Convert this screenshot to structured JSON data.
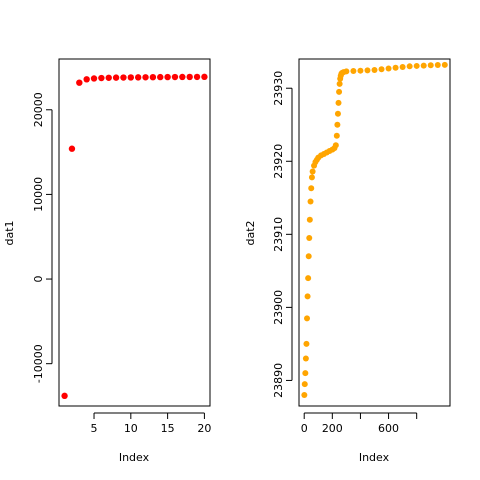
{
  "chart_data": [
    {
      "type": "scatter",
      "xlabel": "Index",
      "ylabel": "dat1",
      "xlim": [
        0.24,
        20.76
      ],
      "ylim": [
        -15000,
        26000
      ],
      "xticks": [
        5,
        10,
        15,
        20
      ],
      "yticks": [
        -10000,
        0,
        10000,
        20000
      ],
      "grid": false,
      "point_color": "#ff0000",
      "series": [
        {
          "x": [
            1,
            2,
            3,
            4,
            5,
            6,
            7,
            8,
            9,
            10,
            11,
            12,
            13,
            14,
            15,
            16,
            17,
            18,
            19,
            20
          ],
          "values": [
            -13800,
            15400,
            23200,
            23600,
            23700,
            23750,
            23780,
            23800,
            23810,
            23820,
            23830,
            23840,
            23850,
            23860,
            23865,
            23870,
            23875,
            23880,
            23885,
            23890
          ]
        }
      ]
    },
    {
      "type": "scatter",
      "xlabel": "Index",
      "ylabel": "dat2",
      "xlim": [
        -37,
        1037
      ],
      "ylim": [
        23886.5,
        23934
      ],
      "xticks": [
        0,
        200,
        600
      ],
      "xticks_unlabeled": [
        400,
        800
      ],
      "yticks": [
        23890,
        23900,
        23910,
        23920,
        23930
      ],
      "grid": false,
      "point_color": "#ffa500",
      "series": [
        {
          "x": [
            1,
            4,
            8,
            12,
            16,
            20,
            24,
            28,
            32,
            36,
            40,
            45,
            50,
            55,
            60,
            70,
            80,
            90,
            100,
            120,
            140,
            160,
            180,
            200,
            215,
            225,
            232,
            236,
            240,
            244,
            248,
            252,
            256,
            260,
            265,
            270,
            280,
            300,
            350,
            400,
            450,
            500,
            550,
            600,
            650,
            700,
            750,
            800,
            850,
            900,
            950,
            1000
          ],
          "values": [
            23888.0,
            23889.5,
            23891.0,
            23893.0,
            23895.0,
            23898.5,
            23901.5,
            23904.0,
            23907.0,
            23909.5,
            23912.0,
            23914.5,
            23916.3,
            23917.8,
            23918.6,
            23919.4,
            23919.9,
            23920.2,
            23920.5,
            23920.8,
            23921.0,
            23921.2,
            23921.4,
            23921.6,
            23921.8,
            23922.2,
            23923.5,
            23925.0,
            23926.5,
            23928.0,
            23929.5,
            23930.6,
            23931.3,
            23931.7,
            23932.0,
            23932.1,
            23932.2,
            23932.3,
            23932.35,
            23932.4,
            23932.45,
            23932.5,
            23932.6,
            23932.7,
            23932.8,
            23932.9,
            23933.0,
            23933.05,
            23933.1,
            23933.15,
            23933.18,
            23933.2
          ]
        }
      ]
    }
  ]
}
